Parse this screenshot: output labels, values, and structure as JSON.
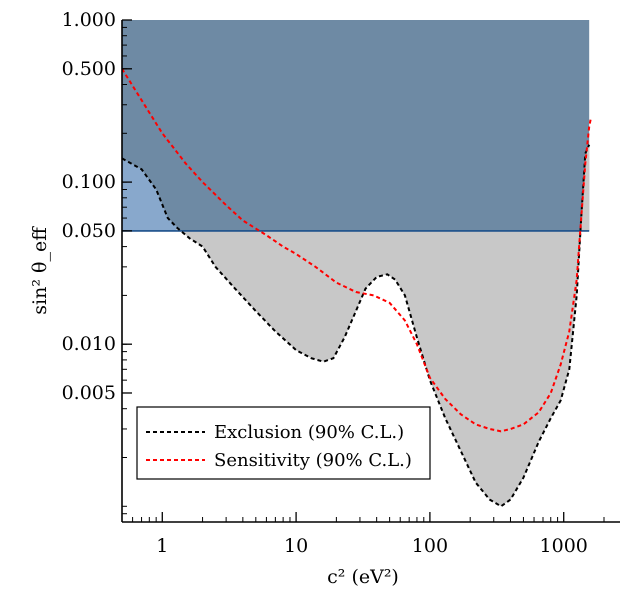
{
  "chart_data": {
    "type": "line",
    "xscale": "log",
    "yscale": "log",
    "xlim": [
      0.5,
      2000
    ],
    "ylim": [
      0.0008,
      1.0
    ],
    "xlabel": "c² (eV²)",
    "ylabel": "sin² θ_eff",
    "xticks": [
      {
        "value": 1,
        "label": "1"
      },
      {
        "value": 10,
        "label": "10"
      },
      {
        "value": 100,
        "label": "100"
      },
      {
        "value": 1000,
        "label": "1000"
      }
    ],
    "yticks": [
      {
        "value": 1.0,
        "label": "1.000"
      },
      {
        "value": 0.5,
        "label": "0.500"
      },
      {
        "value": 0.1,
        "label": "0.100"
      },
      {
        "value": 0.05,
        "label": "0.050"
      },
      {
        "value": 0.01,
        "label": "0.010"
      },
      {
        "value": 0.005,
        "label": "0.005"
      }
    ],
    "grid": false,
    "legend_position": "lower-left",
    "series": [
      {
        "name": "Exclusion (90% C.L.)",
        "style": "dashed",
        "color": "#000000",
        "x": [
          0.5,
          0.7,
          0.9,
          1.1,
          1.3,
          1.6,
          2.0,
          2.5,
          3.5,
          5,
          7,
          10,
          13,
          16,
          19,
          23,
          28,
          33,
          40,
          48,
          55,
          65,
          80,
          100,
          130,
          170,
          220,
          280,
          340,
          400,
          500,
          650,
          800,
          950,
          1100,
          1250,
          1350,
          1450,
          1550
        ],
        "y": [
          0.14,
          0.12,
          0.09,
          0.06,
          0.052,
          0.045,
          0.04,
          0.03,
          0.022,
          0.016,
          0.012,
          0.0092,
          0.0082,
          0.0078,
          0.0082,
          0.011,
          0.016,
          0.022,
          0.026,
          0.027,
          0.025,
          0.02,
          0.011,
          0.006,
          0.0035,
          0.0022,
          0.0014,
          0.0011,
          0.001,
          0.0011,
          0.0015,
          0.0025,
          0.0035,
          0.0045,
          0.007,
          0.02,
          0.06,
          0.15,
          0.17
        ]
      },
      {
        "name": "Sensitivity (90% C.L.)",
        "style": "dashed",
        "color": "#ff0000",
        "x": [
          0.5,
          0.7,
          1,
          1.5,
          2,
          3,
          4,
          6,
          8,
          10,
          14,
          20,
          28,
          38,
          50,
          65,
          80,
          100,
          130,
          170,
          220,
          280,
          340,
          400,
          500,
          650,
          800,
          950,
          1100,
          1250,
          1350,
          1450,
          1550,
          1600
        ],
        "y": [
          0.5,
          0.32,
          0.2,
          0.13,
          0.1,
          0.072,
          0.058,
          0.047,
          0.04,
          0.036,
          0.03,
          0.024,
          0.021,
          0.02,
          0.018,
          0.014,
          0.01,
          0.0062,
          0.0046,
          0.0037,
          0.0032,
          0.003,
          0.0029,
          0.003,
          0.0032,
          0.0038,
          0.005,
          0.0075,
          0.012,
          0.025,
          0.06,
          0.13,
          0.22,
          0.25
        ]
      }
    ],
    "shaded_regions": [
      {
        "role": "upper band above horizontal line",
        "color": "#6e8aa4"
      },
      {
        "role": "region below exclusion curve above line",
        "color": "#88a8cc"
      },
      {
        "role": "region between line and exclusion curve",
        "color": "#c8c8c8"
      }
    ],
    "hline": {
      "y": 0.05,
      "color": "#1a4f8a"
    }
  }
}
